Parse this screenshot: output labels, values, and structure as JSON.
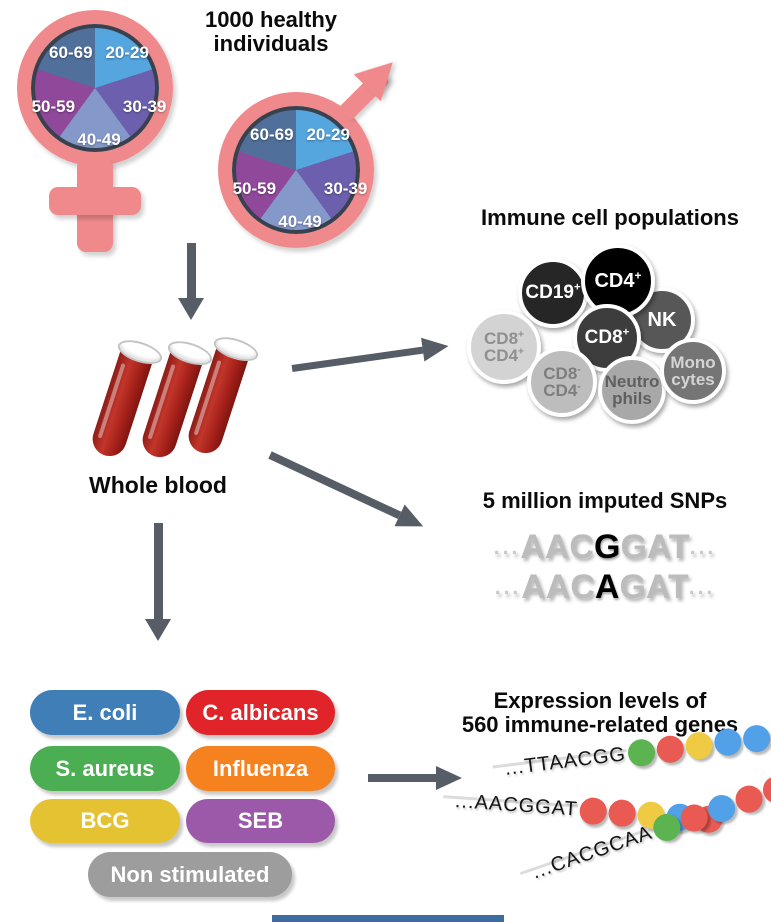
{
  "palette": {
    "pink": "#F0898C",
    "arrow": "#565D66",
    "pie_border": "#3A414E",
    "snp_gray": "#BCBCBC",
    "bottom_bar_blue": "#3F6C9E"
  },
  "header": {
    "title": "1000 healthy individuals"
  },
  "age_pie": {
    "groups": [
      {
        "label": "20-29",
        "color": "#55A5DF"
      },
      {
        "label": "30-39",
        "color": "#6C5FAD"
      },
      {
        "label": "40-49",
        "color": "#8498CA"
      },
      {
        "label": "50-59",
        "color": "#90489B"
      },
      {
        "label": "60-69",
        "color": "#50709B"
      }
    ]
  },
  "whole_blood": {
    "label": "Whole blood"
  },
  "immune_cells": {
    "title": "Immune cell populations",
    "cells": [
      {
        "id": "nk",
        "lines": [
          "NK"
        ],
        "bg": "#575757",
        "fg": "#FFFFFF"
      },
      {
        "id": "cd19",
        "lines": [
          "CD19+"
        ],
        "bg": "#262626",
        "fg": "#FFFFFF"
      },
      {
        "id": "cd4",
        "lines": [
          "CD4+"
        ],
        "bg": "#000000",
        "fg": "#FFFFFF"
      },
      {
        "id": "cd8-cd4-dp",
        "lines": [
          "CD8+",
          "CD4+"
        ],
        "bg": "#D3D3D3",
        "fg": "#8F8F8F"
      },
      {
        "id": "cd8",
        "lines": [
          "CD8+"
        ],
        "bg": "#3D3D3D",
        "fg": "#FFFFFF"
      },
      {
        "id": "cd8-cd4-dn",
        "lines": [
          "CD8-",
          "CD4-"
        ],
        "bg": "#BDBDBD",
        "fg": "#7E7E7E"
      },
      {
        "id": "neutrophils",
        "lines": [
          "Neutro",
          "phils"
        ],
        "bg": "#A8A8A8",
        "fg": "#5F5F5F"
      },
      {
        "id": "monocytes",
        "lines": [
          "Mono",
          "cytes"
        ],
        "bg": "#757575",
        "fg": "#D4D4D4"
      }
    ]
  },
  "snps": {
    "title": "5 million imputed SNPs",
    "ellipsis": "...",
    "lines": [
      {
        "pre": "AAC",
        "variant": "G",
        "post": "GAT"
      },
      {
        "pre": "AAC",
        "variant": "A",
        "post": "GAT"
      }
    ]
  },
  "stimuli": {
    "pills": [
      {
        "id": "ecoli",
        "label": "E. coli",
        "color": "#3F7EB6"
      },
      {
        "id": "calbicans",
        "label": "C. albicans",
        "color": "#E02429"
      },
      {
        "id": "saureus",
        "label": "S. aureus",
        "color": "#4CAE52"
      },
      {
        "id": "influenza",
        "label": "Influenza",
        "color": "#F5821F"
      },
      {
        "id": "bcg",
        "label": "BCG",
        "color": "#E5C232"
      },
      {
        "id": "seb",
        "label": "SEB",
        "color": "#9C59A9"
      },
      {
        "id": "nonstim",
        "label": "Non stimulated",
        "color": "#9D9D9D"
      }
    ]
  },
  "expression": {
    "title_line1": "Expression levels of",
    "title_line2": "560 immune-related genes",
    "dot_colors": {
      "green": "#5CB450",
      "red": "#E85A52",
      "yellow": "#EECB43",
      "blue": "#52A1E8"
    },
    "rows": [
      {
        "text": "...TTAACGG",
        "dots": [
          "green",
          "red",
          "yellow",
          "blue",
          "blue"
        ]
      },
      {
        "text": "...AACGGAT",
        "dots": [
          "red",
          "red",
          "yellow",
          "blue",
          "red"
        ]
      },
      {
        "text": "...CACGCAA",
        "dots": [
          "green",
          "red",
          "blue",
          "red",
          "red"
        ]
      }
    ]
  }
}
